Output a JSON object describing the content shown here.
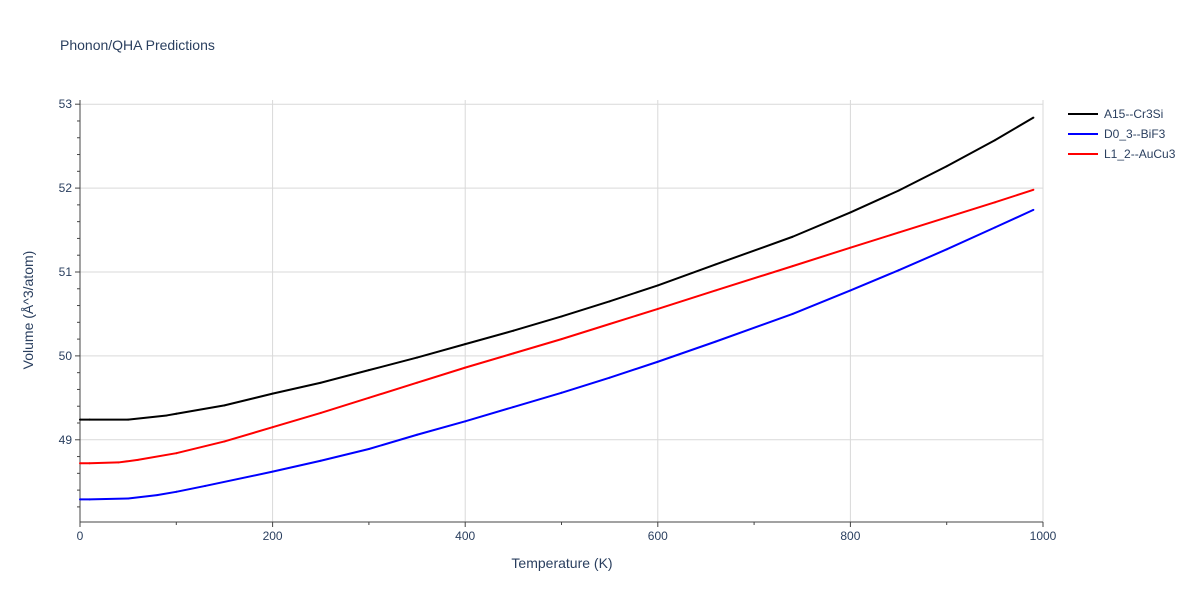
{
  "chart_data": {
    "type": "line",
    "title": "Phonon/QHA Predictions",
    "xlabel": "Temperature (K)",
    "ylabel": "Volume (Å^3/atom)",
    "xlim": [
      0,
      1000
    ],
    "ylim": [
      48.02,
      53.05
    ],
    "xticks": [
      0,
      200,
      400,
      600,
      800,
      1000
    ],
    "yticks": [
      49,
      50,
      51,
      52,
      53
    ],
    "grid": true,
    "legend_position": "top-right",
    "series": [
      {
        "name": "A15--Cr3Si",
        "color": "#000000",
        "x": [
          0,
          10,
          50,
          90,
          100,
          150,
          200,
          250,
          300,
          350,
          400,
          450,
          500,
          550,
          600,
          660,
          740,
          800,
          850,
          900,
          950,
          990
        ],
        "y": [
          49.24,
          49.24,
          49.24,
          49.29,
          49.31,
          49.41,
          49.55,
          49.68,
          49.83,
          49.98,
          50.14,
          50.3,
          50.47,
          50.65,
          50.84,
          51.09,
          51.42,
          51.71,
          51.97,
          52.26,
          52.57,
          52.84
        ]
      },
      {
        "name": "D0_3--BiF3",
        "color": "#0000ff",
        "x": [
          0,
          10,
          50,
          80,
          100,
          130,
          200,
          250,
          300,
          350,
          400,
          450,
          500,
          550,
          600,
          660,
          740,
          800,
          850,
          900,
          950,
          990
        ],
        "y": [
          48.29,
          48.29,
          48.3,
          48.34,
          48.38,
          48.45,
          48.62,
          48.75,
          48.89,
          49.06,
          49.22,
          49.39,
          49.56,
          49.74,
          49.93,
          50.17,
          50.5,
          50.78,
          51.02,
          51.27,
          51.53,
          51.74
        ]
      },
      {
        "name": "L1_2--AuCu3",
        "color": "#ff0000",
        "x": [
          0,
          10,
          40,
          60,
          100,
          150,
          200,
          250,
          300,
          350,
          400,
          450,
          500,
          550,
          600,
          660,
          740,
          800,
          850,
          900,
          950,
          990
        ],
        "y": [
          48.72,
          48.72,
          48.73,
          48.76,
          48.84,
          48.98,
          49.15,
          49.32,
          49.5,
          49.68,
          49.86,
          50.03,
          50.2,
          50.38,
          50.56,
          50.78,
          51.07,
          51.29,
          51.47,
          51.65,
          51.83,
          51.98
        ]
      }
    ]
  }
}
